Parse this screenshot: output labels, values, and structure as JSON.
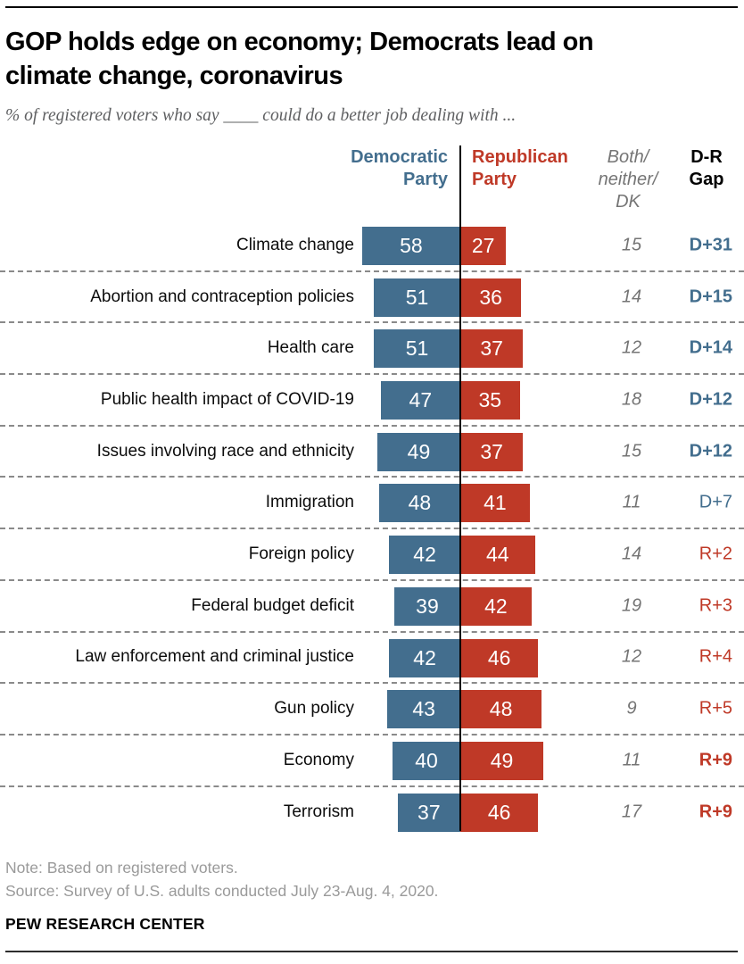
{
  "header": {
    "title": "GOP holds edge on economy; Democrats lead on\nclimate change, coronavirus",
    "subtitle": "% of registered voters who say ____ could do a better job dealing with ..."
  },
  "columns": {
    "democratic": "Democratic\nParty",
    "republican": "Republican\nParty",
    "both_neither_dk": "Both/\nneither/\nDK",
    "dr_gap": "D-R\nGap"
  },
  "chart_data": {
    "type": "bar",
    "orientation": "horizontal-diverging",
    "value_unit": "percent of registered voters",
    "axis_center": "shared zero baseline between Democratic (left) and Republican (right) bars",
    "xlim": [
      0,
      60
    ],
    "categories": [
      "Climate change",
      "Abortion and contraception policies",
      "Health care",
      "Public health impact of COVID-19",
      "Issues involving race and ethnicity",
      "Immigration",
      "Foreign policy",
      "Federal budget deficit",
      "Law enforcement and criminal justice",
      "Gun policy",
      "Economy",
      "Terrorism"
    ],
    "series": [
      {
        "name": "Democratic Party",
        "values": [
          58,
          51,
          51,
          47,
          49,
          48,
          42,
          39,
          42,
          43,
          40,
          37
        ]
      },
      {
        "name": "Republican Party",
        "values": [
          27,
          36,
          37,
          35,
          37,
          41,
          44,
          42,
          46,
          48,
          49,
          46
        ]
      },
      {
        "name": "Both/neither/DK",
        "values": [
          15,
          14,
          12,
          18,
          15,
          11,
          14,
          19,
          12,
          9,
          11,
          17
        ]
      }
    ],
    "gaps": [
      {
        "label": "D+31",
        "party": "D",
        "bold": true
      },
      {
        "label": "D+15",
        "party": "D",
        "bold": true
      },
      {
        "label": "D+14",
        "party": "D",
        "bold": true
      },
      {
        "label": "D+12",
        "party": "D",
        "bold": true
      },
      {
        "label": "D+12",
        "party": "D",
        "bold": true
      },
      {
        "label": "D+7",
        "party": "D",
        "bold": false
      },
      {
        "label": "R+2",
        "party": "R",
        "bold": false
      },
      {
        "label": "R+3",
        "party": "R",
        "bold": false
      },
      {
        "label": "R+4",
        "party": "R",
        "bold": false
      },
      {
        "label": "R+5",
        "party": "R",
        "bold": false
      },
      {
        "label": "R+9",
        "party": "R",
        "bold": true
      },
      {
        "label": "R+9",
        "party": "R",
        "bold": true
      }
    ]
  },
  "colors": {
    "democratic": "#436e8e",
    "republican": "#bf3927",
    "both_text": "#757575",
    "note_text": "#9a9a9a",
    "bar_value_text": "#ffffff"
  },
  "footer": {
    "note": "Note: Based on registered voters.",
    "source": "Source: Survey of U.S. adults conducted July 23-Aug. 4, 2020.",
    "brand": "PEW RESEARCH CENTER"
  }
}
